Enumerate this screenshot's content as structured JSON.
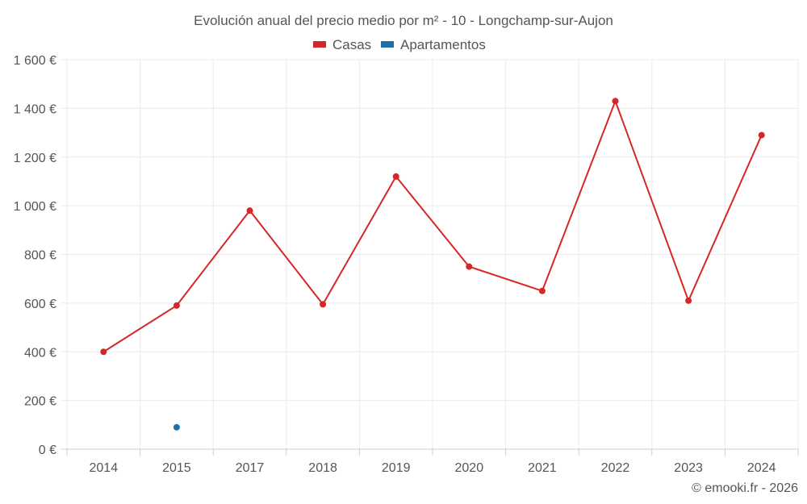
{
  "chart_data": {
    "type": "line",
    "title": "Evolución anual del precio medio por m² - 10 - Longchamp-sur-Aujon",
    "categories": [
      "2014",
      "2015",
      "2017",
      "2018",
      "2019",
      "2020",
      "2021",
      "2022",
      "2023",
      "2024"
    ],
    "series": [
      {
        "name": "Casas",
        "color": "#d62728",
        "values": [
          400,
          590,
          980,
          595,
          1120,
          750,
          650,
          1430,
          610,
          1290
        ]
      },
      {
        "name": "Apartamentos",
        "color": "#1f6fa8",
        "values": [
          null,
          90,
          null,
          null,
          null,
          null,
          null,
          null,
          null,
          null
        ]
      }
    ],
    "ylim": [
      0,
      1600
    ],
    "yticks": [
      0,
      200,
      400,
      600,
      800,
      1000,
      1200,
      1400,
      1600
    ],
    "ytick_labels": [
      "0 €",
      "200 €",
      "400 €",
      "600 €",
      "800 €",
      "1 000 €",
      "1 200 €",
      "1 400 €",
      "1 600 €"
    ],
    "legend": "top-center",
    "grid": true
  },
  "credit": "© emooki.fr - 2026"
}
